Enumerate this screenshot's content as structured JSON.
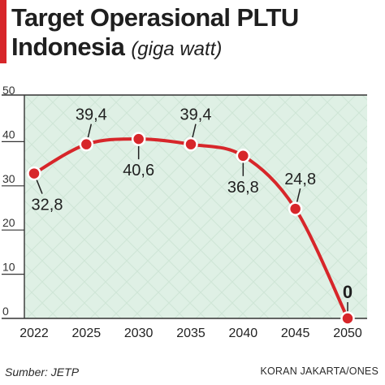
{
  "header": {
    "title_line1": "Target Operasional PLTU",
    "title_line2": "Indonesia",
    "unit": "(giga watt)"
  },
  "chart_data": {
    "type": "line",
    "categories": [
      "2022",
      "2025",
      "2030",
      "2035",
      "2040",
      "2045",
      "2050"
    ],
    "values": [
      32.8,
      39.4,
      40.6,
      39.4,
      36.8,
      24.8,
      0
    ],
    "value_labels": [
      "32,8",
      "39,4",
      "40,6",
      "39,4",
      "36,8",
      "24,8",
      "0"
    ],
    "title": "Target Operasional PLTU Indonesia (giga watt)",
    "xlabel": "",
    "ylabel": "",
    "ylim": [
      0,
      50
    ],
    "yticks": [
      0,
      10,
      20,
      30,
      40,
      50
    ],
    "grid": false,
    "legend": "none"
  },
  "footer": {
    "source": "Sumber: JETP",
    "credit": "KORAN JAKARTA/ONES"
  },
  "colors": {
    "accent": "#d7262a",
    "line": "#d7262a",
    "frame": "#333333",
    "plot_background": "#dff0e5",
    "text": "#1f1f1f"
  }
}
